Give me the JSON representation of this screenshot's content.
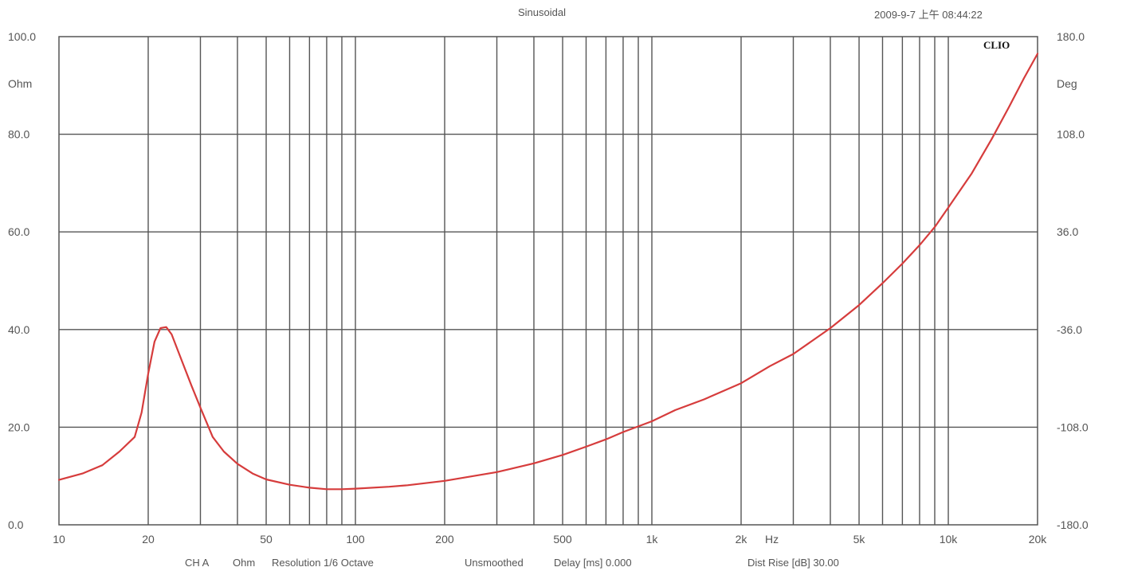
{
  "header": {
    "subtitle": "Sinusoidal",
    "timestamp": "2009-9-7 上午 08:44:22"
  },
  "brand": "CLIO",
  "footer": {
    "channel": "CH A",
    "unit": "Ohm",
    "resolution": "Resolution 1/6 Octave",
    "smoothing": "Unsmoothed",
    "delay": "Delay [ms] 0.000",
    "dist_rise": "Dist Rise [dB] 30.00"
  },
  "colors": {
    "curve": "#d63c3c",
    "grid": "#555555",
    "background": "#ffffff"
  },
  "chart_data": {
    "type": "line",
    "title": "",
    "xlabel": "Hz",
    "ylabel": "Ohm",
    "y2label": "Deg",
    "xscale": "log",
    "xlim": [
      10,
      20000
    ],
    "ylim": [
      0,
      100
    ],
    "y2lim": [
      -180,
      180
    ],
    "grid": true,
    "x_tick_labels": [
      {
        "value": 10,
        "label": "10"
      },
      {
        "value": 20,
        "label": "20"
      },
      {
        "value": 50,
        "label": "50"
      },
      {
        "value": 100,
        "label": "100"
      },
      {
        "value": 200,
        "label": "200"
      },
      {
        "value": 500,
        "label": "500"
      },
      {
        "value": 1000,
        "label": "1k"
      },
      {
        "value": 2000,
        "label": "2k"
      },
      {
        "value": 5000,
        "label": "5k"
      },
      {
        "value": 10000,
        "label": "10k"
      },
      {
        "value": 20000,
        "label": "20k"
      }
    ],
    "x_minor_ticks": [
      30,
      40,
      60,
      70,
      80,
      90,
      300,
      400,
      600,
      700,
      800,
      900,
      3000,
      4000,
      6000,
      7000,
      8000,
      9000
    ],
    "y_tick_labels": [
      {
        "value": 0,
        "label": "0.0"
      },
      {
        "value": 20,
        "label": "20.0"
      },
      {
        "value": 40,
        "label": "40.0"
      },
      {
        "value": 60,
        "label": "60.0"
      },
      {
        "value": 80,
        "label": "80.0"
      },
      {
        "value": 100,
        "label": "100.0"
      }
    ],
    "y2_tick_labels": [
      {
        "value": -180,
        "label": "-180.0"
      },
      {
        "value": -108,
        "label": "-108.0"
      },
      {
        "value": -36,
        "label": "-36.0"
      },
      {
        "value": 36,
        "label": "36.0"
      },
      {
        "value": 108,
        "label": "108.0"
      },
      {
        "value": 180,
        "label": "180.0"
      }
    ],
    "series": [
      {
        "points": [
          [
            10,
            9.2
          ],
          [
            12,
            10.5
          ],
          [
            14,
            12.2
          ],
          [
            16,
            15.0
          ],
          [
            18,
            18.0
          ],
          [
            19,
            23.0
          ],
          [
            20,
            31.0
          ],
          [
            21,
            37.5
          ],
          [
            22,
            40.3
          ],
          [
            23,
            40.5
          ],
          [
            24,
            39.0
          ],
          [
            26,
            33.5
          ],
          [
            28,
            28.5
          ],
          [
            30,
            24.0
          ],
          [
            33,
            18.0
          ],
          [
            36,
            15.0
          ],
          [
            40,
            12.5
          ],
          [
            45,
            10.5
          ],
          [
            50,
            9.3
          ],
          [
            60,
            8.2
          ],
          [
            70,
            7.6
          ],
          [
            80,
            7.3
          ],
          [
            90,
            7.3
          ],
          [
            100,
            7.4
          ],
          [
            130,
            7.8
          ],
          [
            150,
            8.1
          ],
          [
            200,
            9.0
          ],
          [
            300,
            10.8
          ],
          [
            400,
            12.6
          ],
          [
            500,
            14.3
          ],
          [
            600,
            16.0
          ],
          [
            700,
            17.5
          ],
          [
            800,
            19.0
          ],
          [
            1000,
            21.2
          ],
          [
            1200,
            23.5
          ],
          [
            1500,
            25.7
          ],
          [
            2000,
            29.0
          ],
          [
            2500,
            32.5
          ],
          [
            3000,
            35.0
          ],
          [
            4000,
            40.3
          ],
          [
            5000,
            45.0
          ],
          [
            6000,
            49.5
          ],
          [
            7000,
            53.5
          ],
          [
            8000,
            57.3
          ],
          [
            9000,
            61.0
          ],
          [
            10000,
            65.0
          ],
          [
            12000,
            72.0
          ],
          [
            14000,
            79.0
          ],
          [
            16000,
            85.5
          ],
          [
            18000,
            91.5
          ],
          [
            20000,
            96.5
          ]
        ]
      }
    ]
  }
}
